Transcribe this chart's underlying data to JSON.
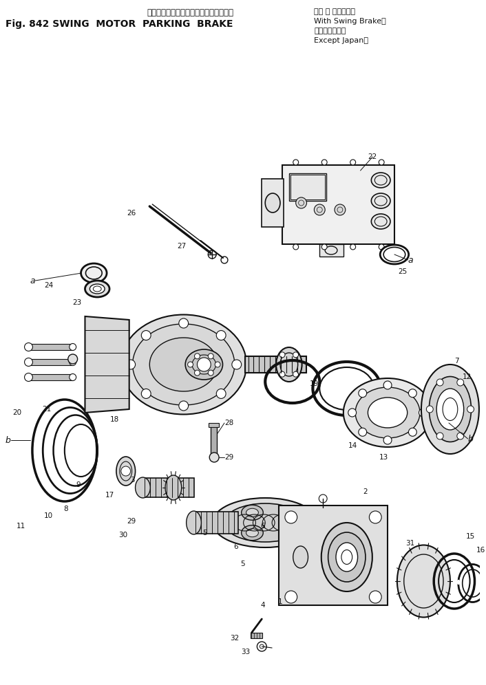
{
  "bg_color": "#ffffff",
  "fg_color": "#000000",
  "fig_width": 7.06,
  "fig_height": 9.96,
  "dpi": 100,
  "title_jp": "旋　回　モータ　パーキング　ブレーキ",
  "title_en": "Fig. 842 SWING  MOTOR  PARKING  BRAKE",
  "bracket_jp1": "（旋 回 ブレーキ付",
  "bracket_en1": "With Swing Brake）",
  "bracket_jp2": "（海　　外　向",
  "bracket_en2": "Except Japan）"
}
